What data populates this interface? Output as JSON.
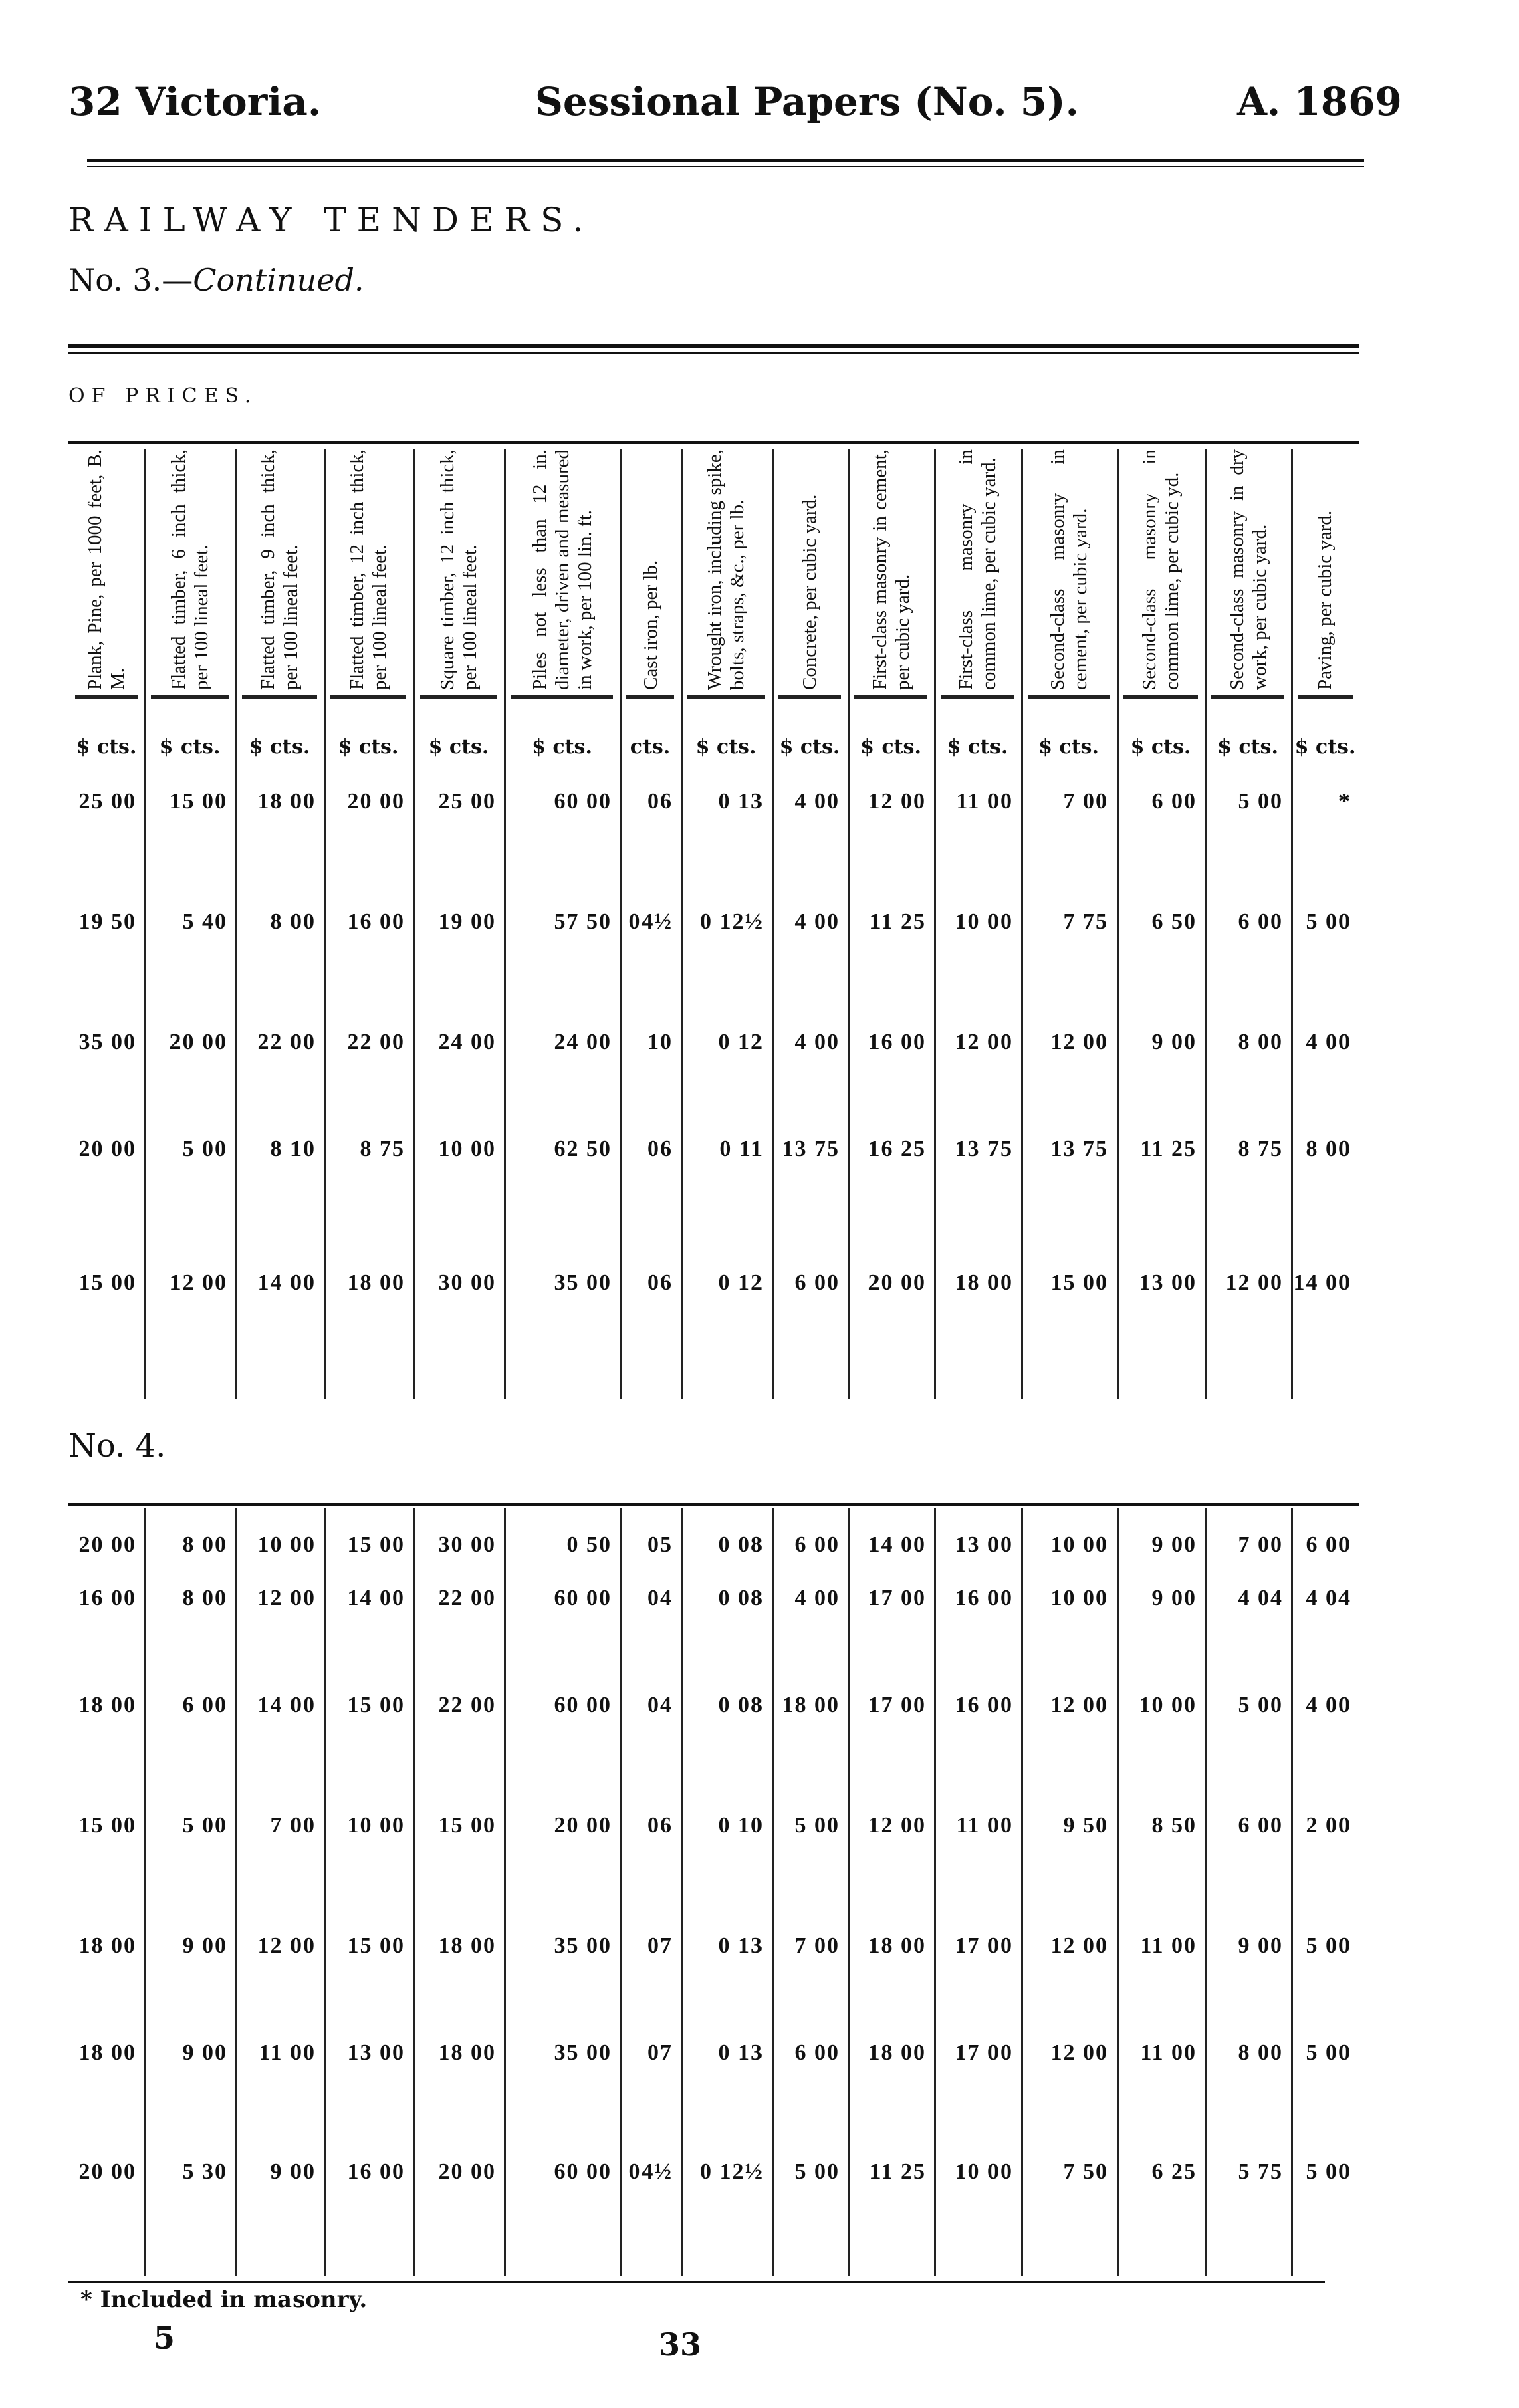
{
  "page_header": {
    "left": "32 Victoria.",
    "center": "Sessional Papers (No. 5).",
    "right": "A. 1869"
  },
  "title": "RAILWAY TENDERS.",
  "subtitle_prefix": "No. 3.—",
  "subtitle_italic": "Continued.",
  "table_caption": "OF PRICES.",
  "columns": [
    {
      "header": "Plank, Pine, per 1000 feet, B. M.",
      "unit": "$ cts."
    },
    {
      "header": "Flatted timber, 6 inch thick, per 100 lineal feet.",
      "unit": "$ cts."
    },
    {
      "header": "Flatted timber, 9 inch thick, per 100 lineal feet.",
      "unit": "$ cts."
    },
    {
      "header": "Flatted timber, 12 inch thick, per 100 lineal feet.",
      "unit": "$ cts."
    },
    {
      "header": "Square timber, 12 inch thick, per 100 lineal feet.",
      "unit": "$ cts."
    },
    {
      "header": "Piles not less than 12 in. diameter, driven and measured in work, per 100 lin. ft.",
      "unit": "$ cts."
    },
    {
      "header": "Cast iron, per lb.",
      "unit": "cts."
    },
    {
      "header": "Wrought iron, including spike, bolts, straps, &c., per lb.",
      "unit": "$ cts."
    },
    {
      "header": "Concrete, per cubic yard.",
      "unit": "$ cts."
    },
    {
      "header": "First-class masonry in cement, per cubic yard.",
      "unit": "$ cts."
    },
    {
      "header": "First-class masonry in common lime, per cubic yard.",
      "unit": "$ cts."
    },
    {
      "header": "Second-class masonry in cement, per cubic yard.",
      "unit": "$ cts."
    },
    {
      "header": "Second-class masonry in common lime, per cubic yd.",
      "unit": "$ cts."
    },
    {
      "header": "Second-class masonry in dry work, per cubic yard.",
      "unit": "$ cts."
    },
    {
      "header": "Paving, per cubic yard.",
      "unit": "$ cts."
    }
  ],
  "section_no3_rows": [
    [
      "25 00",
      "15 00",
      "18 00",
      "20 00",
      "25 00",
      "60 00",
      "06",
      "0 13",
      "4 00",
      "12 00",
      "11 00",
      "7 00",
      "6 00",
      "5 00",
      "*"
    ],
    [
      "19 50",
      "5 40",
      "8 00",
      "16 00",
      "19 00",
      "57 50",
      "04½",
      "0 12½",
      "4 00",
      "11 25",
      "10 00",
      "7 75",
      "6 50",
      "6 00",
      "5 00"
    ],
    [
      "35 00",
      "20 00",
      "22 00",
      "22 00",
      "24 00",
      "24 00",
      "10",
      "0 12",
      "4 00",
      "16 00",
      "12 00",
      "12 00",
      "9 00",
      "8 00",
      "4 00"
    ],
    [
      "20 00",
      "5 00",
      "8 10",
      "8 75",
      "10 00",
      "62 50",
      "06",
      "0 11",
      "13 75",
      "16 25",
      "13 75",
      "13 75",
      "11 25",
      "8 75",
      "8 00"
    ],
    [
      "15 00",
      "12 00",
      "14 00",
      "18 00",
      "30 00",
      "35 00",
      "06",
      "0 12",
      "6 00",
      "20 00",
      "18 00",
      "15 00",
      "13 00",
      "12 00",
      "14 00"
    ]
  ],
  "section_no4_label": "No. 4.",
  "section_no4_rows": [
    [
      "20 00",
      "8 00",
      "10 00",
      "15 00",
      "30 00",
      "0 50",
      "05",
      "0 08",
      "6 00",
      "14 00",
      "13 00",
      "10 00",
      "9 00",
      "7 00",
      "6 00"
    ],
    [
      "16 00",
      "8 00",
      "12 00",
      "14 00",
      "22 00",
      "60 00",
      "04",
      "0 08",
      "4 00",
      "17 00",
      "16 00",
      "10 00",
      "9 00",
      "4 04",
      "4 04"
    ],
    [
      "18 00",
      "6 00",
      "14 00",
      "15 00",
      "22 00",
      "60 00",
      "04",
      "0 08",
      "18 00",
      "17 00",
      "16 00",
      "12 00",
      "10 00",
      "5 00",
      "4 00"
    ],
    [
      "15 00",
      "5 00",
      "7 00",
      "10 00",
      "15 00",
      "20 00",
      "06",
      "0 10",
      "5 00",
      "12 00",
      "11 00",
      "9 50",
      "8 50",
      "6 00",
      "2 00"
    ],
    [
      "18 00",
      "9 00",
      "12 00",
      "15 00",
      "18 00",
      "35 00",
      "07",
      "0 13",
      "7 00",
      "18 00",
      "17 00",
      "12 00",
      "11 00",
      "9 00",
      "5 00"
    ],
    [
      "18 00",
      "9 00",
      "11 00",
      "13 00",
      "18 00",
      "35 00",
      "07",
      "0 13",
      "6 00",
      "18 00",
      "17 00",
      "12 00",
      "11 00",
      "8 00",
      "5 00"
    ],
    [
      "20 00",
      "5 30",
      "9 00",
      "16 00",
      "20 00",
      "60 00",
      "04½",
      "0 12½",
      "5 00",
      "11 25",
      "10 00",
      "7 50",
      "6 25",
      "5 75",
      "5 00"
    ]
  ],
  "footnote": "* Included in masonry.",
  "signature_mark": "5",
  "page_number": "33"
}
